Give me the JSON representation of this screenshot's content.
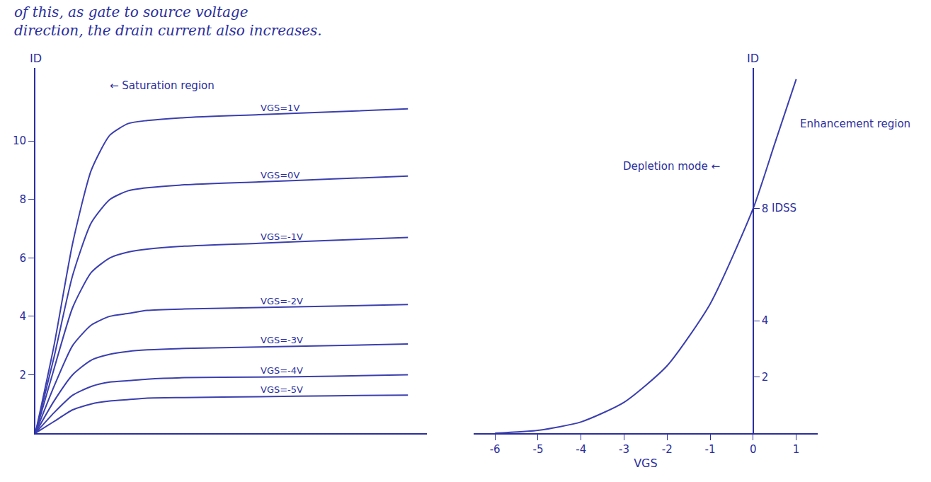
{
  "header_text": [
    "of this, as gate to source voltage",
    "direction, the drain current also increases."
  ],
  "chart_data": [
    {
      "type": "line",
      "ylabel": "ID",
      "x": [
        0,
        0.5,
        1,
        1.5,
        2,
        2.5,
        3,
        4,
        6,
        8,
        10
      ],
      "series": [
        {
          "name": "VGS=1V",
          "color": "#3b3fae",
          "values": [
            0,
            3,
            6.5,
            9,
            10.2,
            10.6,
            10.7,
            10.8,
            10.9,
            11.0,
            11.1
          ]
        },
        {
          "name": "VGS=0V",
          "color": "#3b3fae",
          "values": [
            0,
            2.6,
            5.4,
            7.2,
            8.0,
            8.3,
            8.4,
            8.5,
            8.6,
            8.7,
            8.8
          ]
        },
        {
          "name": "VGS=-1V",
          "color": "#3b3fae",
          "values": [
            0,
            2.2,
            4.3,
            5.5,
            6.0,
            6.2,
            6.3,
            6.4,
            6.5,
            6.6,
            6.7
          ]
        },
        {
          "name": "VGS=-2V",
          "color": "#3b3fae",
          "values": [
            0,
            1.6,
            3.0,
            3.7,
            4.0,
            4.1,
            4.2,
            4.25,
            4.3,
            4.35,
            4.4
          ]
        },
        {
          "name": "VGS=-3V",
          "color": "#3b3fae",
          "values": [
            0,
            1.1,
            2.0,
            2.5,
            2.7,
            2.8,
            2.85,
            2.9,
            2.95,
            3.0,
            3.05
          ]
        },
        {
          "name": "VGS=-4V",
          "color": "#3b3fae",
          "values": [
            0,
            0.7,
            1.3,
            1.6,
            1.75,
            1.8,
            1.85,
            1.9,
            1.92,
            1.95,
            2.0
          ]
        },
        {
          "name": "VGS=-5V",
          "color": "#3b3fae",
          "values": [
            0,
            0.4,
            0.8,
            1.0,
            1.1,
            1.15,
            1.2,
            1.22,
            1.25,
            1.28,
            1.3
          ]
        }
      ],
      "xlim": [
        0,
        10.5
      ],
      "xticks": [],
      "ylim": [
        0,
        12.5
      ],
      "yticks": [
        2,
        4,
        6,
        8,
        10
      ],
      "tick_labels": "y",
      "grid": false,
      "annotations": [
        {
          "text": "← Saturation region",
          "x": 3.4,
          "y": 11.9
        }
      ]
    },
    {
      "type": "line",
      "xlabel": "VGS",
      "ylabel": "ID",
      "x": [
        -6,
        -5,
        -4,
        -3,
        -2,
        -1,
        0,
        0.5,
        1
      ],
      "values": [
        0,
        0.1,
        0.4,
        1.1,
        2.4,
        4.6,
        8,
        10.3,
        12.6
      ],
      "color": "#3b3fae",
      "xlim": [
        -6.5,
        1.5
      ],
      "xticks": [
        -6,
        -5,
        -4,
        -3,
        -2,
        -1,
        0,
        1
      ],
      "ylim": [
        0,
        13
      ],
      "yticks": [
        2,
        4,
        8
      ],
      "grid": false,
      "annotations": [
        {
          "text": "Depletion mode ←",
          "x": -1.9,
          "y": 9.5
        },
        {
          "text": "IDSS",
          "x": 0.4,
          "y": 8
        },
        {
          "text": "Enhancement region",
          "x": 1.05,
          "y": 11
        }
      ]
    }
  ]
}
